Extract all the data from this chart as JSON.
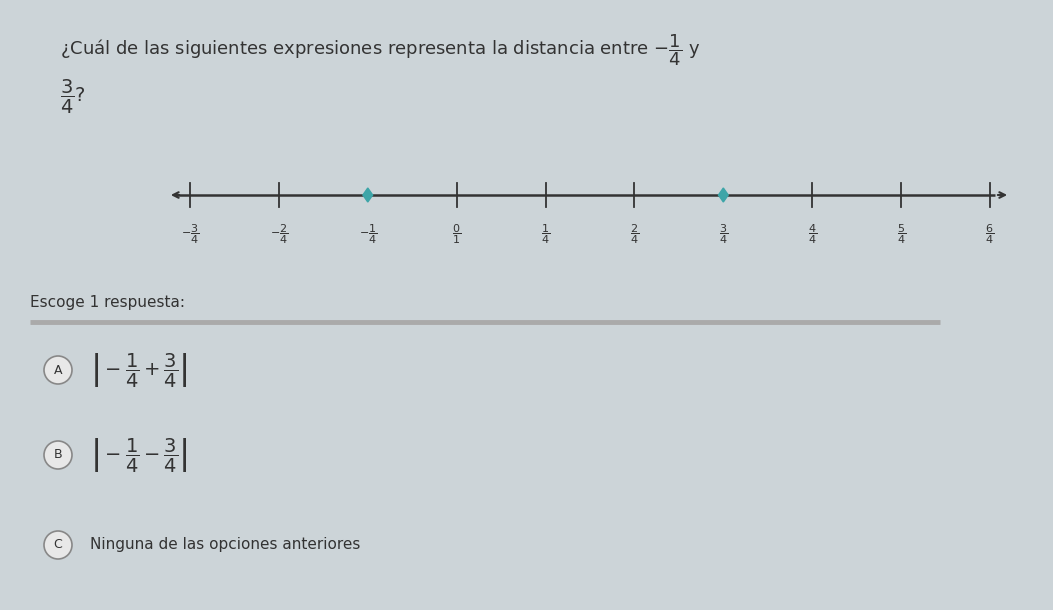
{
  "bg_color": "#cdd5d8",
  "title_text": "¿Cuál de las siguientes expresiones representa la distancia entre $-\\dfrac{1}{4}$ y",
  "subtitle_text": "$\\dfrac{3}{4}$?",
  "number_line_ticks": [
    -3,
    -2,
    -1,
    0,
    1,
    2,
    3,
    4,
    5,
    6
  ],
  "tick_label_display": [
    "$-\\dfrac{3}{4}$",
    "$-\\dfrac{2}{4}$",
    "$-\\dfrac{1}{4}$",
    "$\\dfrac{0}{1}$",
    "$\\dfrac{1}{4}$",
    "$\\dfrac{2}{4}$",
    "$\\dfrac{3}{4}$",
    "$\\dfrac{4}{4}$",
    "$\\dfrac{5}{4}$",
    "$\\dfrac{6}{4}$"
  ],
  "highlighted_ticks": [
    -1,
    3
  ],
  "highlight_color": "#3da5a8",
  "separator_color": "#aaaaaa",
  "circle_color": "#e8e8e8",
  "circle_edge_color": "#888888",
  "escoge_text": "Escoge 1 respuesta:",
  "option_A_expr": "$\\left|-\\dfrac{1}{4}+\\dfrac{3}{4}\\right|$",
  "option_B_expr": "$\\left|-\\dfrac{1}{4}-\\dfrac{3}{4}\\right|$",
  "option_C_text": "Ninguna de las opciones anteriores",
  "font_color": "#333333",
  "title_fontsize": 13,
  "tick_fontsize": 8,
  "escoge_fontsize": 11,
  "expr_fontsize": 14
}
